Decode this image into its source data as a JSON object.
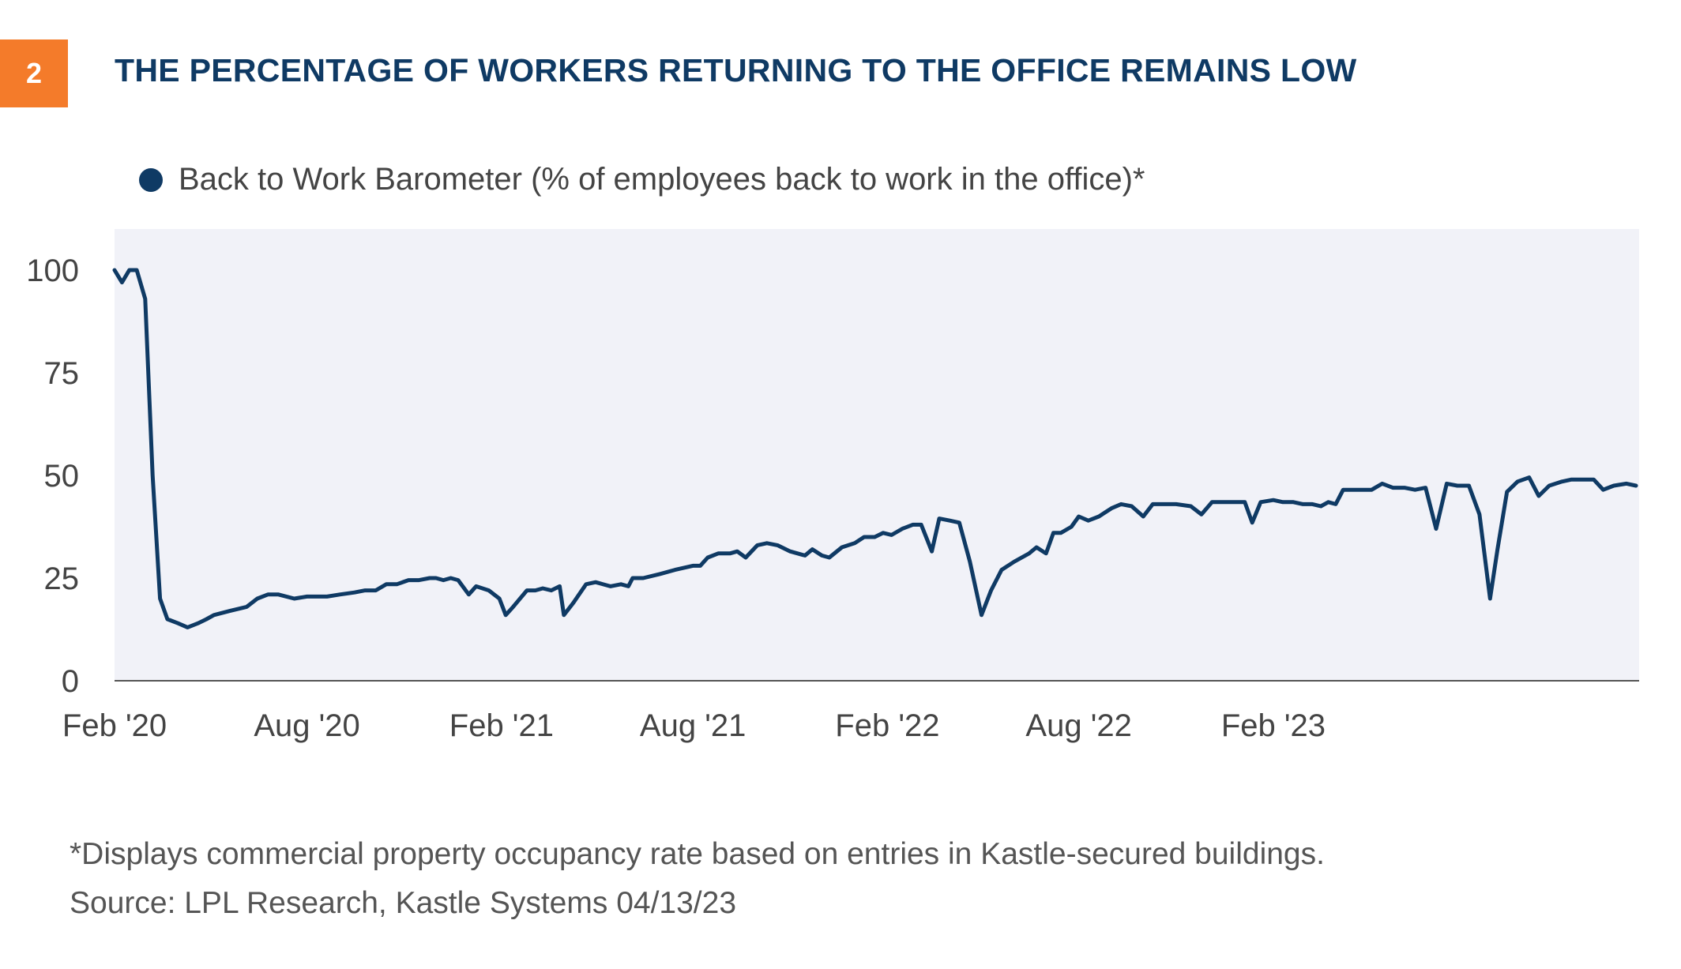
{
  "figure": {
    "number": "2",
    "title": "THE PERCENTAGE OF WORKERS RETURNING TO THE OFFICE REMAINS LOW",
    "footnote": "*Displays commercial property occupancy rate based on entries in Kastle-secured buildings.",
    "source": "Source: LPL Research, Kastle Systems  04/13/23"
  },
  "colors": {
    "accent_badge": "#f47b2a",
    "title": "#0f3a64",
    "line": "#0f3a64",
    "plot_background": "#f1f2f8"
  },
  "chart_data": {
    "type": "line",
    "title": "THE PERCENTAGE OF WORKERS RETURNING TO THE OFFICE REMAINS LOW",
    "xlabel": "",
    "ylabel": "",
    "ylim": [
      0,
      110
    ],
    "yticks": [
      0,
      25,
      50,
      75,
      100
    ],
    "xticks": [
      {
        "label": "Feb '20",
        "date": "2020-02-01"
      },
      {
        "label": "Aug '20",
        "date": "2020-08-01"
      },
      {
        "label": "Feb '21",
        "date": "2021-02-01"
      },
      {
        "label": "Aug '21",
        "date": "2021-08-01"
      },
      {
        "label": "Feb '22",
        "date": "2022-02-01"
      },
      {
        "label": "Aug '22",
        "date": "2022-08-01"
      },
      {
        "label": "Feb '23",
        "date": "2023-02-01"
      }
    ],
    "grid": false,
    "legend": "top-left",
    "series": [
      {
        "name": "Back to Work Barometer (% of employees back to work in the office)*",
        "points": [
          [
            "2020-02-01",
            100
          ],
          [
            "2020-02-08",
            97
          ],
          [
            "2020-02-15",
            100
          ],
          [
            "2020-02-22",
            100
          ],
          [
            "2020-03-01",
            93
          ],
          [
            "2020-03-08",
            50
          ],
          [
            "2020-03-15",
            20
          ],
          [
            "2020-03-22",
            15
          ],
          [
            "2020-04-01",
            14
          ],
          [
            "2020-04-10",
            13
          ],
          [
            "2020-04-20",
            14
          ],
          [
            "2020-04-28",
            15
          ],
          [
            "2020-05-05",
            16
          ],
          [
            "2020-05-20",
            17
          ],
          [
            "2020-06-05",
            18
          ],
          [
            "2020-06-15",
            20
          ],
          [
            "2020-06-25",
            21
          ],
          [
            "2020-07-05",
            21
          ],
          [
            "2020-07-20",
            20
          ],
          [
            "2020-08-01",
            20.5
          ],
          [
            "2020-08-20",
            20.5
          ],
          [
            "2020-09-01",
            21
          ],
          [
            "2020-09-15",
            21.5
          ],
          [
            "2020-09-25",
            22
          ],
          [
            "2020-10-05",
            22
          ],
          [
            "2020-10-15",
            23.5
          ],
          [
            "2020-10-25",
            23.5
          ],
          [
            "2020-11-05",
            24.5
          ],
          [
            "2020-11-15",
            24.5
          ],
          [
            "2020-11-25",
            25
          ],
          [
            "2020-12-01",
            25
          ],
          [
            "2020-12-08",
            24.5
          ],
          [
            "2020-12-15",
            25
          ],
          [
            "2020-12-22",
            24.5
          ],
          [
            "2021-01-01",
            21
          ],
          [
            "2021-01-08",
            23
          ],
          [
            "2021-01-20",
            22
          ],
          [
            "2021-01-30",
            20
          ],
          [
            "2021-02-05",
            16
          ],
          [
            "2021-02-12",
            18
          ],
          [
            "2021-02-25",
            22
          ],
          [
            "2021-03-05",
            22
          ],
          [
            "2021-03-12",
            22.5
          ],
          [
            "2021-03-20",
            22
          ],
          [
            "2021-03-28",
            23
          ],
          [
            "2021-04-01",
            16
          ],
          [
            "2021-04-10",
            19
          ],
          [
            "2021-04-22",
            23.5
          ],
          [
            "2021-05-01",
            24
          ],
          [
            "2021-05-15",
            23
          ],
          [
            "2021-05-25",
            23.5
          ],
          [
            "2021-06-01",
            23
          ],
          [
            "2021-06-05",
            25
          ],
          [
            "2021-06-15",
            25
          ],
          [
            "2021-07-01",
            26
          ],
          [
            "2021-07-15",
            27
          ],
          [
            "2021-08-01",
            28
          ],
          [
            "2021-08-08",
            28
          ],
          [
            "2021-08-15",
            30
          ],
          [
            "2021-08-25",
            31
          ],
          [
            "2021-09-05",
            31
          ],
          [
            "2021-09-12",
            31.5
          ],
          [
            "2021-09-20",
            30
          ],
          [
            "2021-10-01",
            33
          ],
          [
            "2021-10-10",
            33.5
          ],
          [
            "2021-10-20",
            33
          ],
          [
            "2021-11-01",
            31.5
          ],
          [
            "2021-11-15",
            30.5
          ],
          [
            "2021-11-22",
            32
          ],
          [
            "2021-12-01",
            30.5
          ],
          [
            "2021-12-08",
            30
          ],
          [
            "2021-12-20",
            32.5
          ],
          [
            "2022-01-01",
            33.5
          ],
          [
            "2022-01-10",
            35
          ],
          [
            "2022-01-20",
            35
          ],
          [
            "2022-01-28",
            36
          ],
          [
            "2022-02-05",
            35.5
          ],
          [
            "2022-02-15",
            37
          ],
          [
            "2022-02-25",
            38
          ],
          [
            "2022-03-05",
            38
          ],
          [
            "2022-03-15",
            31.5
          ],
          [
            "2022-03-22",
            39.5
          ],
          [
            "2022-04-01",
            39
          ],
          [
            "2022-04-10",
            38.5
          ],
          [
            "2022-04-20",
            29
          ],
          [
            "2022-05-01",
            16
          ],
          [
            "2022-05-10",
            22
          ],
          [
            "2022-05-20",
            27
          ],
          [
            "2022-06-01",
            29
          ],
          [
            "2022-06-15",
            31
          ],
          [
            "2022-06-22",
            32.5
          ],
          [
            "2022-07-01",
            31
          ],
          [
            "2022-07-08",
            36
          ],
          [
            "2022-07-15",
            36
          ],
          [
            "2022-07-25",
            37.5
          ],
          [
            "2022-08-01",
            40
          ],
          [
            "2022-08-10",
            39
          ],
          [
            "2022-08-20",
            40
          ],
          [
            "2022-09-01",
            42
          ],
          [
            "2022-09-10",
            43
          ],
          [
            "2022-09-20",
            42.5
          ],
          [
            "2022-10-01",
            40
          ],
          [
            "2022-10-10",
            43
          ],
          [
            "2022-10-20",
            43
          ],
          [
            "2022-11-01",
            43
          ],
          [
            "2022-11-15",
            42.5
          ],
          [
            "2022-11-25",
            40.5
          ],
          [
            "2022-12-05",
            43.5
          ],
          [
            "2022-12-15",
            43.5
          ],
          [
            "2022-12-25",
            43.5
          ],
          [
            "2023-01-05",
            43.5
          ],
          [
            "2023-01-12",
            38.5
          ],
          [
            "2023-01-20",
            43.5
          ],
          [
            "2023-02-01",
            44
          ],
          [
            "2023-02-10",
            43.5
          ],
          [
            "2023-02-20",
            43.5
          ],
          [
            "2023-03-01",
            43
          ],
          [
            "2023-03-10",
            43
          ],
          [
            "2023-03-18",
            42.5
          ],
          [
            "2023-03-25",
            43.5
          ],
          [
            "2023-04-01",
            43
          ],
          [
            "2023-04-08",
            46.5
          ],
          [
            "2023-04-15",
            46.5
          ],
          [
            "2023-04-25",
            46.5
          ],
          [
            "2023-05-05",
            46.5
          ],
          [
            "2023-05-15",
            48
          ],
          [
            "2023-05-25",
            47
          ],
          [
            "2023-06-05",
            47
          ],
          [
            "2023-06-15",
            46.5
          ],
          [
            "2023-06-25",
            47
          ],
          [
            "2023-07-05",
            37
          ],
          [
            "2023-07-15",
            48
          ],
          [
            "2023-07-25",
            47.5
          ],
          [
            "2023-08-05",
            47.5
          ],
          [
            "2023-08-15",
            40.5
          ],
          [
            "2023-08-25",
            20
          ],
          [
            "2023-09-01",
            32
          ],
          [
            "2023-09-10",
            46
          ],
          [
            "2023-09-20",
            48.5
          ],
          [
            "2023-10-01",
            49.5
          ],
          [
            "2023-10-10",
            45
          ],
          [
            "2023-10-20",
            47.5
          ],
          [
            "2023-11-01",
            48.5
          ],
          [
            "2023-11-10",
            49
          ],
          [
            "2023-11-20",
            49
          ],
          [
            "2023-12-01",
            49
          ],
          [
            "2023-12-10",
            46.5
          ],
          [
            "2023-12-20",
            47.5
          ],
          [
            "2024-01-01",
            48
          ],
          [
            "2024-01-10",
            47.5
          ]
        ]
      }
    ]
  }
}
